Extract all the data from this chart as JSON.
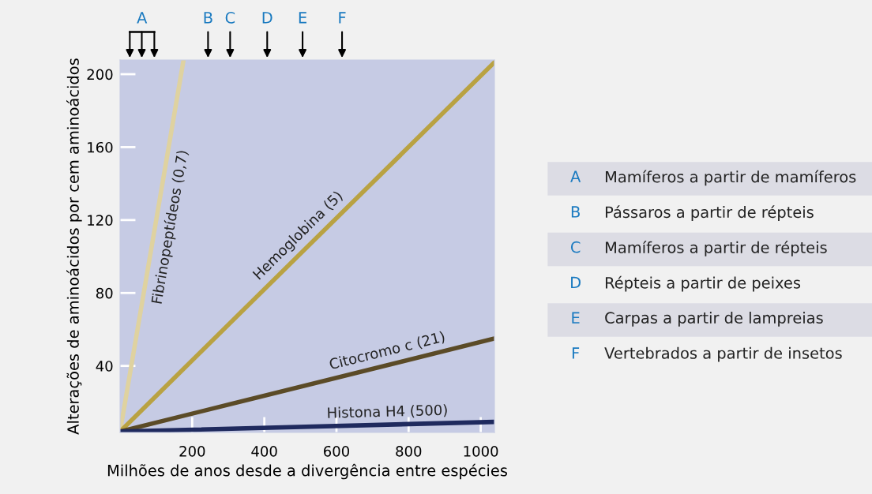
{
  "chart_data": {
    "type": "line",
    "xlabel": "Milhões de anos desde a divergência entre espécies",
    "ylabel": "Alterações de aminoácidos por cem aminoácidos",
    "xlim": [
      0,
      1038
    ],
    "ylim": [
      3.5,
      207.8
    ],
    "xticks": [
      200,
      400,
      600,
      800,
      1000
    ],
    "yticks": [
      40,
      80,
      120,
      160,
      200
    ],
    "grid": false,
    "legend": false,
    "marker": "none",
    "line_style": "solid",
    "series": [
      {
        "name": "Fibrinopeptídeos (0,7)",
        "color": "#dfd2a0",
        "x": [
          0,
          176
        ],
        "values": [
          4,
          207.8
        ]
      },
      {
        "name": "Hemoglobina (5)",
        "color": "#b9a242",
        "x": [
          0,
          1038
        ],
        "values": [
          4,
          206.5
        ]
      },
      {
        "name": "Citocromo c (21)",
        "color": "#5b4b27",
        "x": [
          0,
          1038
        ],
        "values": [
          4,
          55
        ]
      },
      {
        "name": "Histona H4 (500)",
        "color": "#1f2a5e",
        "x": [
          0,
          1038
        ],
        "values": [
          4,
          9.3
        ]
      }
    ],
    "annotations": [
      "A",
      "B",
      "C",
      "D",
      "E",
      "F",
      "A Mamíferos a partir de mamíferos",
      "B Pássaros a partir de répteis",
      "C Mamíferos a partir de répteis",
      "D Répteis a partir de peixes",
      "E Carpas a partir de lampreias",
      "F Vertebrados a partir de insetos"
    ]
  }
}
